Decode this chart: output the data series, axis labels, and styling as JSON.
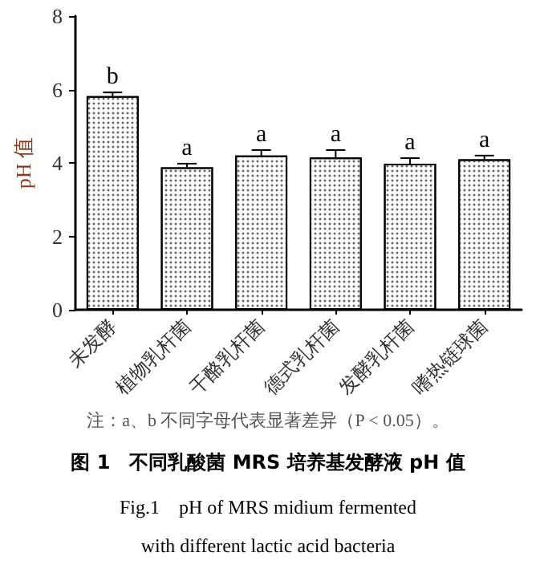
{
  "chart_data": {
    "type": "bar",
    "title": "图 1　不同乳酸菌 MRS 培养基发酵液 pH 值",
    "subtitle": "Fig.1　pH of MRS midium fermented\nwith different lactic acid bacteria",
    "ylabel": "pH 值",
    "categories": [
      "未发酵",
      "植物乳杆菌",
      "干酪乳杆菌",
      "德式乳杆菌",
      "发酵乳杆菌",
      "嗜热链球菌"
    ],
    "values": [
      5.82,
      3.88,
      4.2,
      4.15,
      3.98,
      4.1
    ],
    "errors": [
      0.1,
      0.1,
      0.15,
      0.2,
      0.15,
      0.1
    ],
    "color": "#ffffff",
    "ylim": [
      0,
      8
    ],
    "yticks": [
      0,
      2,
      4,
      6,
      8
    ],
    "grid": false,
    "annotations": [
      {
        "text": "b",
        "x": "未发酵",
        "y": 5.92
      },
      {
        "text": "a",
        "x": "植物乳杆菌",
        "y": 3.98
      },
      {
        "text": "a",
        "x": "干酪乳杆菌",
        "y": 4.35
      },
      {
        "text": "a",
        "x": "德式乳杆菌",
        "y": 4.35
      },
      {
        "text": "a",
        "x": "发酵乳杆菌",
        "y": 4.13
      },
      {
        "text": "a",
        "x": "嗜热链球菌",
        "y": 4.2
      },
      "注：a、b 不同字母代表显著差异（P < 0.05）。"
    ]
  }
}
